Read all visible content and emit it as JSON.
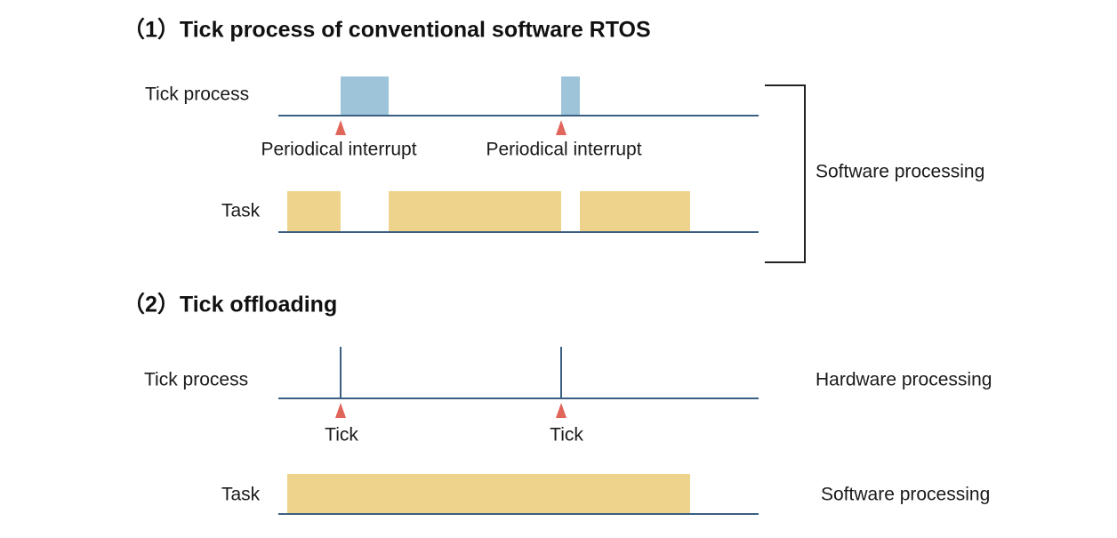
{
  "sections": [
    {
      "title": "（1）Tick process of conventional software RTOS",
      "rows": [
        {
          "label": "Tick process",
          "markers": [
            "Periodical interrupt",
            "Periodical interrupt"
          ]
        },
        {
          "label": "Task"
        }
      ],
      "sides": [
        "Software processing"
      ]
    },
    {
      "title": "（2）Tick offloading",
      "rows": [
        {
          "label": "Tick process",
          "markers": [
            "Tick",
            "Tick"
          ]
        },
        {
          "label": "Task"
        }
      ],
      "sides": [
        "Hardware processing",
        "Software processing"
      ]
    }
  ]
}
